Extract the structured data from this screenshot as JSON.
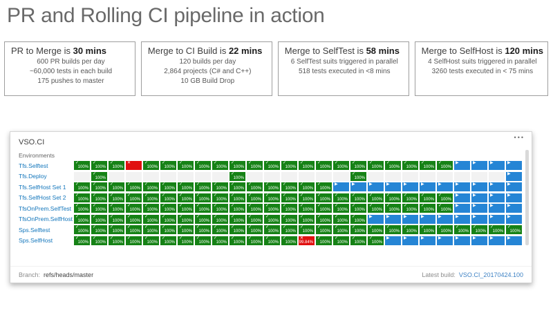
{
  "page": {
    "title": "PR and Rolling CI pipeline in action"
  },
  "stats": [
    {
      "heading": "PR to Merge is",
      "value": "30 mins",
      "lines": [
        "600 PR builds per day",
        "~60,000 tests in each build",
        "175 pushes to master"
      ]
    },
    {
      "heading": "Merge to CI Build is",
      "value": "22 mins",
      "lines": [
        "120 builds per day",
        "2,864 projects (C# and C++)",
        "10 GB Build Drop"
      ]
    },
    {
      "heading": "Merge to SelfTest is",
      "value": "58 mins",
      "lines": [
        "6 SelfTest suits triggered in parallel",
        "518 tests executed in <8 mins"
      ]
    },
    {
      "heading": "Merge to SelfHost is",
      "value": "120 mins",
      "lines": [
        "4 SelfHost suits triggered in parallel",
        "3260 tests executed in < 75 mins"
      ]
    }
  ],
  "dashboard": {
    "title": "VSO.CI",
    "menu_icon": "ellipsis-menu",
    "menu_glyph": "•••",
    "environments_label": "Environments",
    "success_pct": "100%",
    "icons": {
      "success": "✓",
      "failed": "✕",
      "running": "▶"
    },
    "colors": {
      "success": "#168216",
      "running": "#2585d5",
      "failed": "#e01010",
      "empty": "#f2f2f2",
      "env_link": "#1175bb"
    },
    "footer": {
      "branch_label": "Branch:",
      "branch_value": "refs/heads/master",
      "latest_build_label": "Latest build:",
      "latest_build_value": "VSO.CI_20170424.100"
    },
    "rows": [
      {
        "label": "Tfs.Selftest",
        "cells": [
          "g",
          "g",
          "g",
          "x",
          "g",
          "g",
          "g",
          "g",
          "g",
          "g",
          "g",
          "g",
          "g",
          "g",
          "g",
          "g",
          "g",
          "g",
          "g",
          "g",
          "g",
          "g",
          "b",
          "b",
          "b",
          "b"
        ]
      },
      {
        "label": "Tfs.Deploy",
        "cells": [
          "e",
          "g",
          "e",
          "e",
          "e",
          "e",
          "e",
          "e",
          "e",
          "g",
          "e",
          "e",
          "e",
          "e",
          "e",
          "e",
          "g",
          "e",
          "e",
          "e",
          "e",
          "e",
          "e",
          "e",
          "e",
          "b"
        ]
      },
      {
        "label": "Tfs.SelfHost Set 1",
        "cells": [
          "g",
          "g",
          "g",
          "g",
          "g",
          "g",
          "g",
          "g",
          "g",
          "g",
          "g",
          "g",
          "g",
          "g",
          "g",
          "b",
          "b",
          "b",
          "b",
          "b",
          "b",
          "b",
          "b",
          "b",
          "b",
          "b"
        ]
      },
      {
        "label": "Tfs.SelfHost Set 2",
        "cells": [
          "g",
          "g",
          "g",
          "g",
          "g",
          "g",
          "g",
          "g",
          "g",
          "g",
          "g",
          "g",
          "g",
          "g",
          "g",
          "g",
          "g",
          "g",
          "g",
          "g",
          "g",
          "g",
          "b",
          "b",
          "b",
          "b"
        ]
      },
      {
        "label": "TfsOnPrem.SelfTest",
        "cells": [
          "g",
          "g",
          "g",
          "g",
          "g",
          "g",
          "g",
          "g",
          "g",
          "g",
          "g",
          "g",
          "g",
          "g",
          "g",
          "g",
          "g",
          "g",
          "g",
          "g",
          "g",
          "g",
          "b",
          "b",
          "b",
          "b"
        ]
      },
      {
        "label": "TfsOnPrem.SelfHost",
        "cells": [
          "g",
          "g",
          "g",
          "g",
          "g",
          "g",
          "g",
          "g",
          "g",
          "g",
          "g",
          "g",
          "g",
          "g",
          "g",
          "g",
          "g",
          "b",
          "b",
          "b",
          "b",
          "b",
          "b",
          "b",
          "b",
          "b"
        ]
      },
      {
        "label": "Sps.Selftest",
        "cells": [
          "g",
          "g",
          "g",
          "g",
          "g",
          "g",
          "g",
          "g",
          "g",
          "g",
          "g",
          "g",
          "g",
          "g",
          "g",
          "g",
          "g",
          "g",
          "g",
          "g",
          "g",
          "g",
          "g",
          "g",
          "g",
          "g"
        ]
      },
      {
        "label": "Sps.SelfHost",
        "cells": [
          "g",
          "g",
          "g",
          "g",
          "g",
          "g",
          "g",
          "g",
          "g",
          "g",
          "g",
          "g",
          "g",
          "f:99.84%",
          "g",
          "g",
          "g",
          "g",
          "b",
          "b",
          "b",
          "b",
          "b",
          "b",
          "b",
          "b"
        ]
      }
    ]
  }
}
